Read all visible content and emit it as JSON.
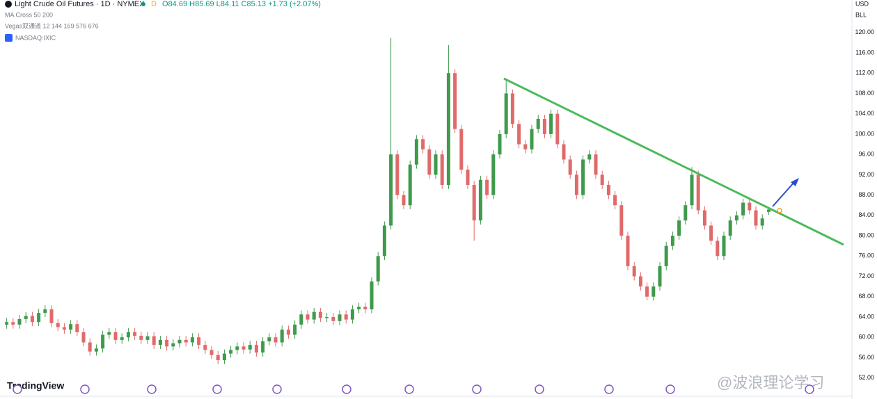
{
  "chart_data": {
    "type": "candlestick",
    "title": "Light Crude Oil Futures · 1D · NYMEX",
    "interval_badge": "D",
    "header_values": "O84.69 H85.69 L84.11 C85.13 +1.73 (+2.07%)",
    "indicators": [
      "MA Cross 50 200",
      "Vegas双通道 12 144 169 576 676",
      "NASDAQ:IXIC"
    ],
    "currency": "USD",
    "unit": "BLL",
    "brand": "TradingView",
    "watermark": "@波浪理论学习",
    "up_color": "#3f9a4c",
    "down_color": "#e06a6a",
    "grid": false,
    "ylim": [
      48.4,
      126.4
    ],
    "yticks": [
      {
        "value": 52,
        "label": "52.00"
      },
      {
        "value": 56,
        "label": "56.00"
      },
      {
        "value": 60,
        "label": "60.00"
      },
      {
        "value": 64,
        "label": "64.00"
      },
      {
        "value": 68,
        "label": "68.00"
      },
      {
        "value": 72,
        "label": "72.00"
      },
      {
        "value": 76,
        "label": "76.00"
      },
      {
        "value": 80,
        "label": "80.00"
      },
      {
        "value": 84,
        "label": "84.00"
      },
      {
        "value": 88,
        "label": "88.00"
      },
      {
        "value": 92,
        "label": "92.00"
      },
      {
        "value": 96,
        "label": "96.00"
      },
      {
        "value": 100,
        "label": "100.00"
      },
      {
        "value": 104,
        "label": "104.00"
      },
      {
        "value": 108,
        "label": "108.00"
      },
      {
        "value": 112,
        "label": "112.00"
      },
      {
        "value": 116,
        "label": "116.00"
      },
      {
        "value": 120,
        "label": "120.00"
      }
    ],
    "open": [
      62.5,
      63,
      62.5,
      63.6,
      64.2,
      63,
      64.8,
      65.5,
      62.8,
      62,
      61.5,
      62.6,
      61,
      59,
      57.2,
      57.8,
      60.5,
      61,
      59.5,
      60,
      61,
      60.3,
      59.5,
      60.2,
      58.5,
      59.5,
      58.2,
      58.8,
      59.5,
      59,
      60,
      58.5,
      57.5,
      56.5,
      55.5,
      56.8,
      57.5,
      58.2,
      57.6,
      58.5,
      57,
      59.2,
      60,
      59,
      61.5,
      60.5,
      62.5,
      64.5,
      63.5,
      65,
      63.8,
      64,
      63.2,
      64.5,
      63.5,
      65.5,
      66,
      65.5,
      71,
      76,
      82,
      96,
      88,
      86,
      94,
      99,
      97,
      92,
      96,
      90,
      112,
      101,
      93,
      90,
      83,
      91,
      88,
      96,
      100,
      108,
      102,
      98,
      97,
      101,
      103,
      100,
      104,
      98,
      95,
      92,
      88,
      95,
      96,
      92,
      90,
      88,
      86,
      80,
      74,
      72,
      70,
      68,
      70,
      74,
      78,
      80,
      83,
      86,
      92,
      85,
      82,
      79,
      76,
      80,
      83,
      84,
      86.5,
      85,
      82,
      84.69
    ],
    "high": [
      63.8,
      63.8,
      64.4,
      65,
      65,
      65.6,
      66.3,
      66.3,
      63.6,
      62.8,
      63.4,
      63.4,
      61.8,
      59.8,
      58.6,
      61.3,
      61.8,
      61.8,
      60.8,
      61.8,
      61.8,
      61.1,
      61,
      61,
      60.3,
      60.3,
      59.6,
      60.3,
      60.3,
      60.8,
      60.8,
      59.3,
      58.3,
      57.3,
      57.6,
      58.3,
      59,
      59,
      59.3,
      59.3,
      60,
      60.8,
      60.8,
      62.3,
      62.3,
      63.3,
      65.3,
      65.3,
      65.8,
      65.8,
      64.8,
      64.8,
      65.3,
      65.3,
      66.3,
      66.8,
      66.8,
      71.8,
      76.8,
      82.8,
      119,
      96.8,
      88.8,
      94.8,
      99.8,
      99.8,
      97.8,
      96.8,
      96.8,
      117.5,
      112.8,
      101.8,
      93.8,
      90.8,
      91.8,
      91.8,
      96.8,
      100.8,
      110.5,
      108.8,
      102.8,
      98.8,
      101.8,
      103.8,
      103.8,
      104.8,
      104.8,
      98.8,
      95.8,
      92.8,
      95.8,
      96.8,
      96.8,
      92.8,
      90.8,
      88.8,
      86.8,
      80.8,
      74.8,
      72.8,
      70.8,
      70.8,
      74.8,
      78.8,
      80.8,
      83.8,
      86.8,
      93.5,
      92.8,
      85.8,
      82.8,
      79.8,
      80.8,
      83.8,
      84.8,
      87.3,
      87.3,
      85.8,
      84.2,
      85.69
    ],
    "low": [
      61.7,
      61.7,
      61.7,
      62.8,
      62.2,
      62.2,
      64,
      62,
      61.2,
      60.7,
      60.7,
      60.2,
      58.2,
      56.4,
      56.4,
      57,
      59.7,
      58.7,
      58.7,
      59.2,
      59.5,
      58.7,
      58.7,
      57.7,
      57.7,
      57.4,
      57.4,
      58,
      58.2,
      58.2,
      57.7,
      56.7,
      55.7,
      54.7,
      54.7,
      56,
      56.7,
      56.8,
      56.8,
      56.2,
      56.2,
      58.4,
      58.2,
      58.2,
      59.7,
      59.7,
      61.7,
      62.7,
      62.7,
      63,
      63,
      62.4,
      62.4,
      62.7,
      62.7,
      64.7,
      64.7,
      64.7,
      70.2,
      75.2,
      81.2,
      87.2,
      85.2,
      85.2,
      93.2,
      96.2,
      91.2,
      91.2,
      89.2,
      89.2,
      100.2,
      92.2,
      89.2,
      79,
      82.2,
      87.2,
      87.2,
      95.2,
      99.2,
      101.2,
      97.2,
      96.2,
      96.2,
      100.2,
      99.2,
      99.2,
      97.2,
      94.2,
      91.2,
      87.2,
      87.2,
      94.2,
      91.2,
      89.2,
      87.2,
      85.2,
      79.2,
      73.2,
      71.2,
      69.2,
      67.3,
      67.2,
      69.2,
      73.2,
      77.2,
      79.2,
      82.2,
      85.2,
      84.2,
      81.2,
      78.2,
      75.2,
      75.2,
      79.2,
      82.2,
      83.2,
      84.2,
      81.2,
      81.2,
      84.11
    ],
    "close": [
      63,
      62.5,
      63.6,
      64.2,
      63,
      64.8,
      65.5,
      62.8,
      62,
      61.5,
      62.6,
      61,
      59,
      57.2,
      57.8,
      60.5,
      61,
      59.5,
      60,
      61,
      60.3,
      59.5,
      60.2,
      58.5,
      59.5,
      58.2,
      58.8,
      59.5,
      59,
      60,
      58.5,
      57.5,
      56.5,
      55.5,
      56.8,
      57.5,
      58.2,
      57.6,
      58.5,
      57,
      59.2,
      60,
      59,
      61.5,
      60.5,
      62.5,
      64.5,
      63.5,
      65,
      63.8,
      64,
      63.2,
      64.5,
      63.5,
      65.5,
      66,
      65.5,
      71,
      76,
      82,
      96,
      88,
      86,
      94,
      99,
      97,
      92,
      96,
      90,
      112,
      101,
      93,
      90,
      83,
      91,
      88,
      96,
      100,
      108,
      102,
      98,
      97,
      101,
      103,
      100,
      104,
      98,
      95,
      92,
      88,
      95,
      96,
      92,
      90,
      88,
      86,
      80,
      74,
      72,
      70,
      68,
      70,
      74,
      78,
      80,
      83,
      86,
      92,
      85,
      82,
      79,
      76,
      80,
      83,
      84,
      86.5,
      85,
      82,
      83.4,
      85.13
    ]
  }
}
